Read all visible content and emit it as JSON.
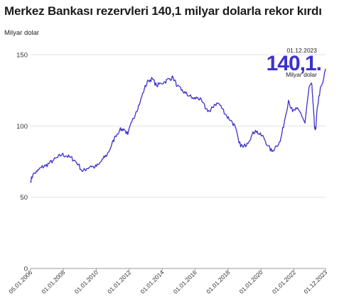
{
  "header": {
    "title": "Merkez Bankası rezervleri 140,1 milyar dolarla rekor kırdı",
    "y_unit_label": "Milyar dolar"
  },
  "annotation": {
    "date": "01.12.2023",
    "value": "140,1.",
    "unit": "Milyar dolar"
  },
  "colors": {
    "line": "#3d31c9",
    "grid": "#e3e3e3",
    "axis": "#9a9a9a"
  },
  "chart_data": {
    "type": "line",
    "title": "Merkez Bankası rezervleri 140,1 milyar dolarla rekor kırdı",
    "ylabel": "Milyar dolar",
    "xlabel": "",
    "ylim": [
      0,
      150
    ],
    "y_ticks": [
      0,
      50,
      100,
      150
    ],
    "x_range": [
      "2006-01-05",
      "2023-12-01"
    ],
    "x_ticks": [
      "05.01.2006",
      "01.01.2008",
      "01.01.2010",
      "01.01.2012",
      "01.01.2014",
      "01.01.2016",
      "01.01.2018",
      "01.01.2020",
      "01.01.2022",
      "01.12.2023"
    ],
    "grid": "horizontal",
    "legend": "none",
    "series": [
      {
        "x": [
          "2006-01",
          "2006-03",
          "2006-06",
          "2006-09",
          "2006-12",
          "2007-03",
          "2007-06",
          "2007-09",
          "2007-12",
          "2008-03",
          "2008-06",
          "2008-09",
          "2008-12",
          "2009-03",
          "2009-06",
          "2009-09",
          "2009-12",
          "2010-03",
          "2010-06",
          "2010-09",
          "2010-12",
          "2011-03",
          "2011-06",
          "2011-09",
          "2011-12",
          "2012-03",
          "2012-06",
          "2012-09",
          "2012-12",
          "2013-03",
          "2013-06",
          "2013-09",
          "2013-12",
          "2014-03",
          "2014-06",
          "2014-09",
          "2014-12",
          "2015-03",
          "2015-06",
          "2015-09",
          "2015-12",
          "2016-03",
          "2016-06",
          "2016-09",
          "2016-12",
          "2017-03",
          "2017-06",
          "2017-09",
          "2017-12",
          "2018-03",
          "2018-06",
          "2018-09",
          "2018-12",
          "2019-03",
          "2019-06",
          "2019-09",
          "2019-12",
          "2020-03",
          "2020-06",
          "2020-09",
          "2020-12",
          "2021-03",
          "2021-06",
          "2021-09",
          "2021-12",
          "2022-03",
          "2022-06",
          "2022-09",
          "2022-12",
          "2023-02",
          "2023-04",
          "2023-05",
          "2023-06",
          "2023-08",
          "2023-10",
          "2023-12"
        ],
        "values": [
          61,
          66,
          68,
          71,
          72,
          74,
          76,
          78,
          80,
          79,
          78,
          76,
          73,
          68,
          70,
          72,
          71,
          73,
          77,
          80,
          86,
          93,
          97,
          98,
          94,
          103,
          110,
          117,
          126,
          132,
          133,
          128,
          130,
          131,
          133,
          134,
          128,
          125,
          123,
          121,
          119,
          120,
          117,
          112,
          110,
          115,
          116,
          112,
          107,
          104,
          100,
          88,
          85,
          88,
          93,
          97,
          94,
          92,
          86,
          82,
          86,
          89,
          103,
          118,
          110,
          112,
          109,
          102,
          127,
          129,
          99,
          98,
          113,
          125,
          130,
          140.1
        ]
      }
    ]
  }
}
